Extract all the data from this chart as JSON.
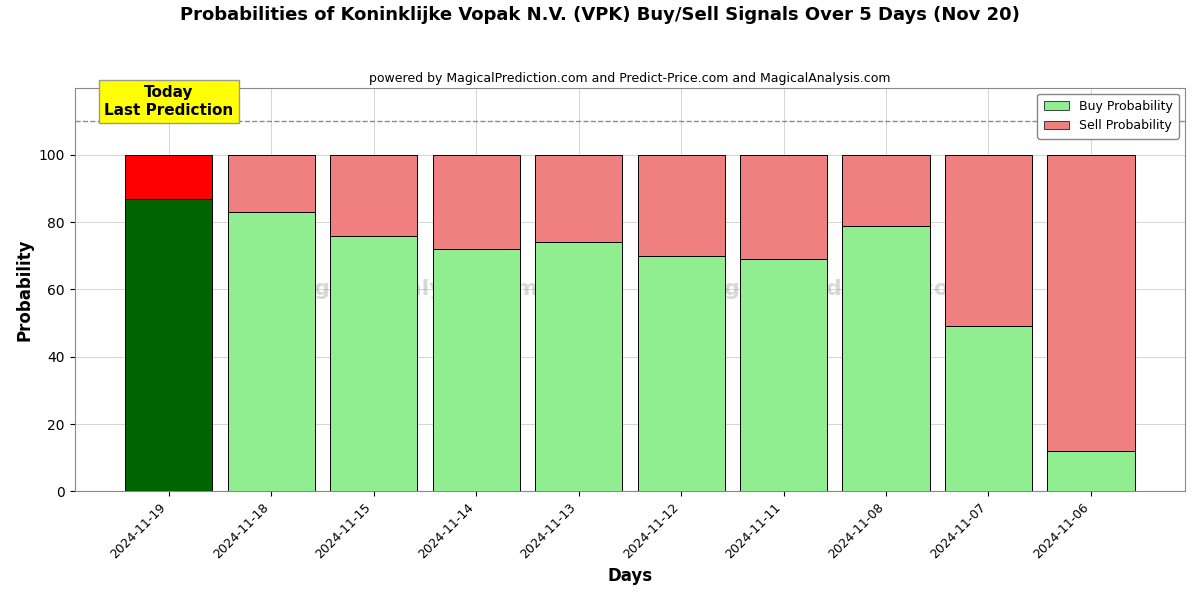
{
  "title": "Probabilities of Koninklijke Vopak N.V. (VPK) Buy/Sell Signals Over 5 Days (Nov 20)",
  "subtitle": "powered by MagicalPrediction.com and Predict-Price.com and MagicalAnalysis.com",
  "xlabel": "Days",
  "ylabel": "Probability",
  "dates": [
    "2024-11-19",
    "2024-11-18",
    "2024-11-15",
    "2024-11-14",
    "2024-11-13",
    "2024-11-12",
    "2024-11-11",
    "2024-11-08",
    "2024-11-07",
    "2024-11-06"
  ],
  "buy_values": [
    87,
    83,
    76,
    72,
    74,
    70,
    69,
    79,
    49,
    12
  ],
  "sell_values": [
    13,
    17,
    24,
    28,
    26,
    30,
    31,
    21,
    51,
    88
  ],
  "today_buy_color": "#006400",
  "today_sell_color": "#ff0000",
  "buy_color": "#90ee90",
  "sell_color": "#f08080",
  "today_annotation_bg": "#ffff00",
  "today_annotation_text": "Today\nLast Prediction",
  "dashed_line_y": 110,
  "ylim": [
    0,
    120
  ],
  "legend_buy_label": "Buy Probability",
  "legend_sell_label": "Sell Probability",
  "fig_width": 12,
  "fig_height": 6,
  "background_color": "#ffffff",
  "plot_bg_color": "#ffffff",
  "grid_color": "#aaaaaa",
  "bar_edge_color": "#000000",
  "bar_width": 0.85
}
